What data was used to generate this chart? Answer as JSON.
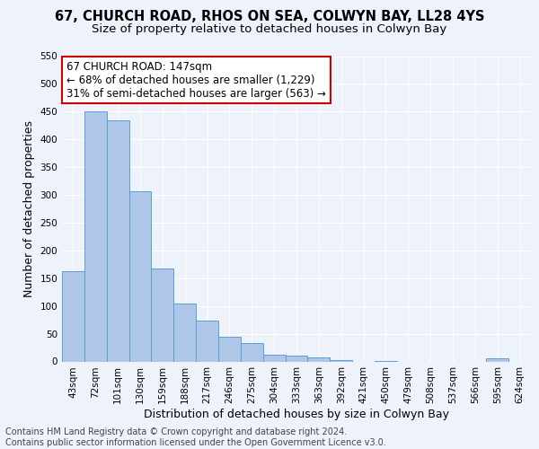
{
  "title1": "67, CHURCH ROAD, RHOS ON SEA, COLWYN BAY, LL28 4YS",
  "title2": "Size of property relative to detached houses in Colwyn Bay",
  "xlabel": "Distribution of detached houses by size in Colwyn Bay",
  "ylabel": "Number of detached properties",
  "categories": [
    "43sqm",
    "72sqm",
    "101sqm",
    "130sqm",
    "159sqm",
    "188sqm",
    "217sqm",
    "246sqm",
    "275sqm",
    "304sqm",
    "333sqm",
    "363sqm",
    "392sqm",
    "421sqm",
    "450sqm",
    "479sqm",
    "508sqm",
    "537sqm",
    "566sqm",
    "595sqm",
    "624sqm"
  ],
  "values": [
    163,
    450,
    435,
    307,
    167,
    105,
    73,
    44,
    33,
    12,
    11,
    8,
    2,
    0,
    1,
    0,
    0,
    0,
    0,
    5,
    0
  ],
  "bar_color": "#aec6e8",
  "bar_edge_color": "#5a9fd4",
  "annotation_line1": "67 CHURCH ROAD: 147sqm",
  "annotation_line2": "← 68% of detached houses are smaller (1,229)",
  "annotation_line3": "31% of semi-detached houses are larger (563) →",
  "annotation_box_color": "#ffffff",
  "annotation_box_edge_color": "#cc0000",
  "footer_text": "Contains HM Land Registry data © Crown copyright and database right 2024.\nContains public sector information licensed under the Open Government Licence v3.0.",
  "ylim": [
    0,
    550
  ],
  "yticks": [
    0,
    50,
    100,
    150,
    200,
    250,
    300,
    350,
    400,
    450,
    500,
    550
  ],
  "background_color": "#eef2fa",
  "grid_color": "#ffffff",
  "title1_fontsize": 10.5,
  "title2_fontsize": 9.5,
  "xlabel_fontsize": 9,
  "ylabel_fontsize": 9,
  "tick_fontsize": 7.5,
  "annotation_fontsize": 8.5,
  "footer_fontsize": 7
}
